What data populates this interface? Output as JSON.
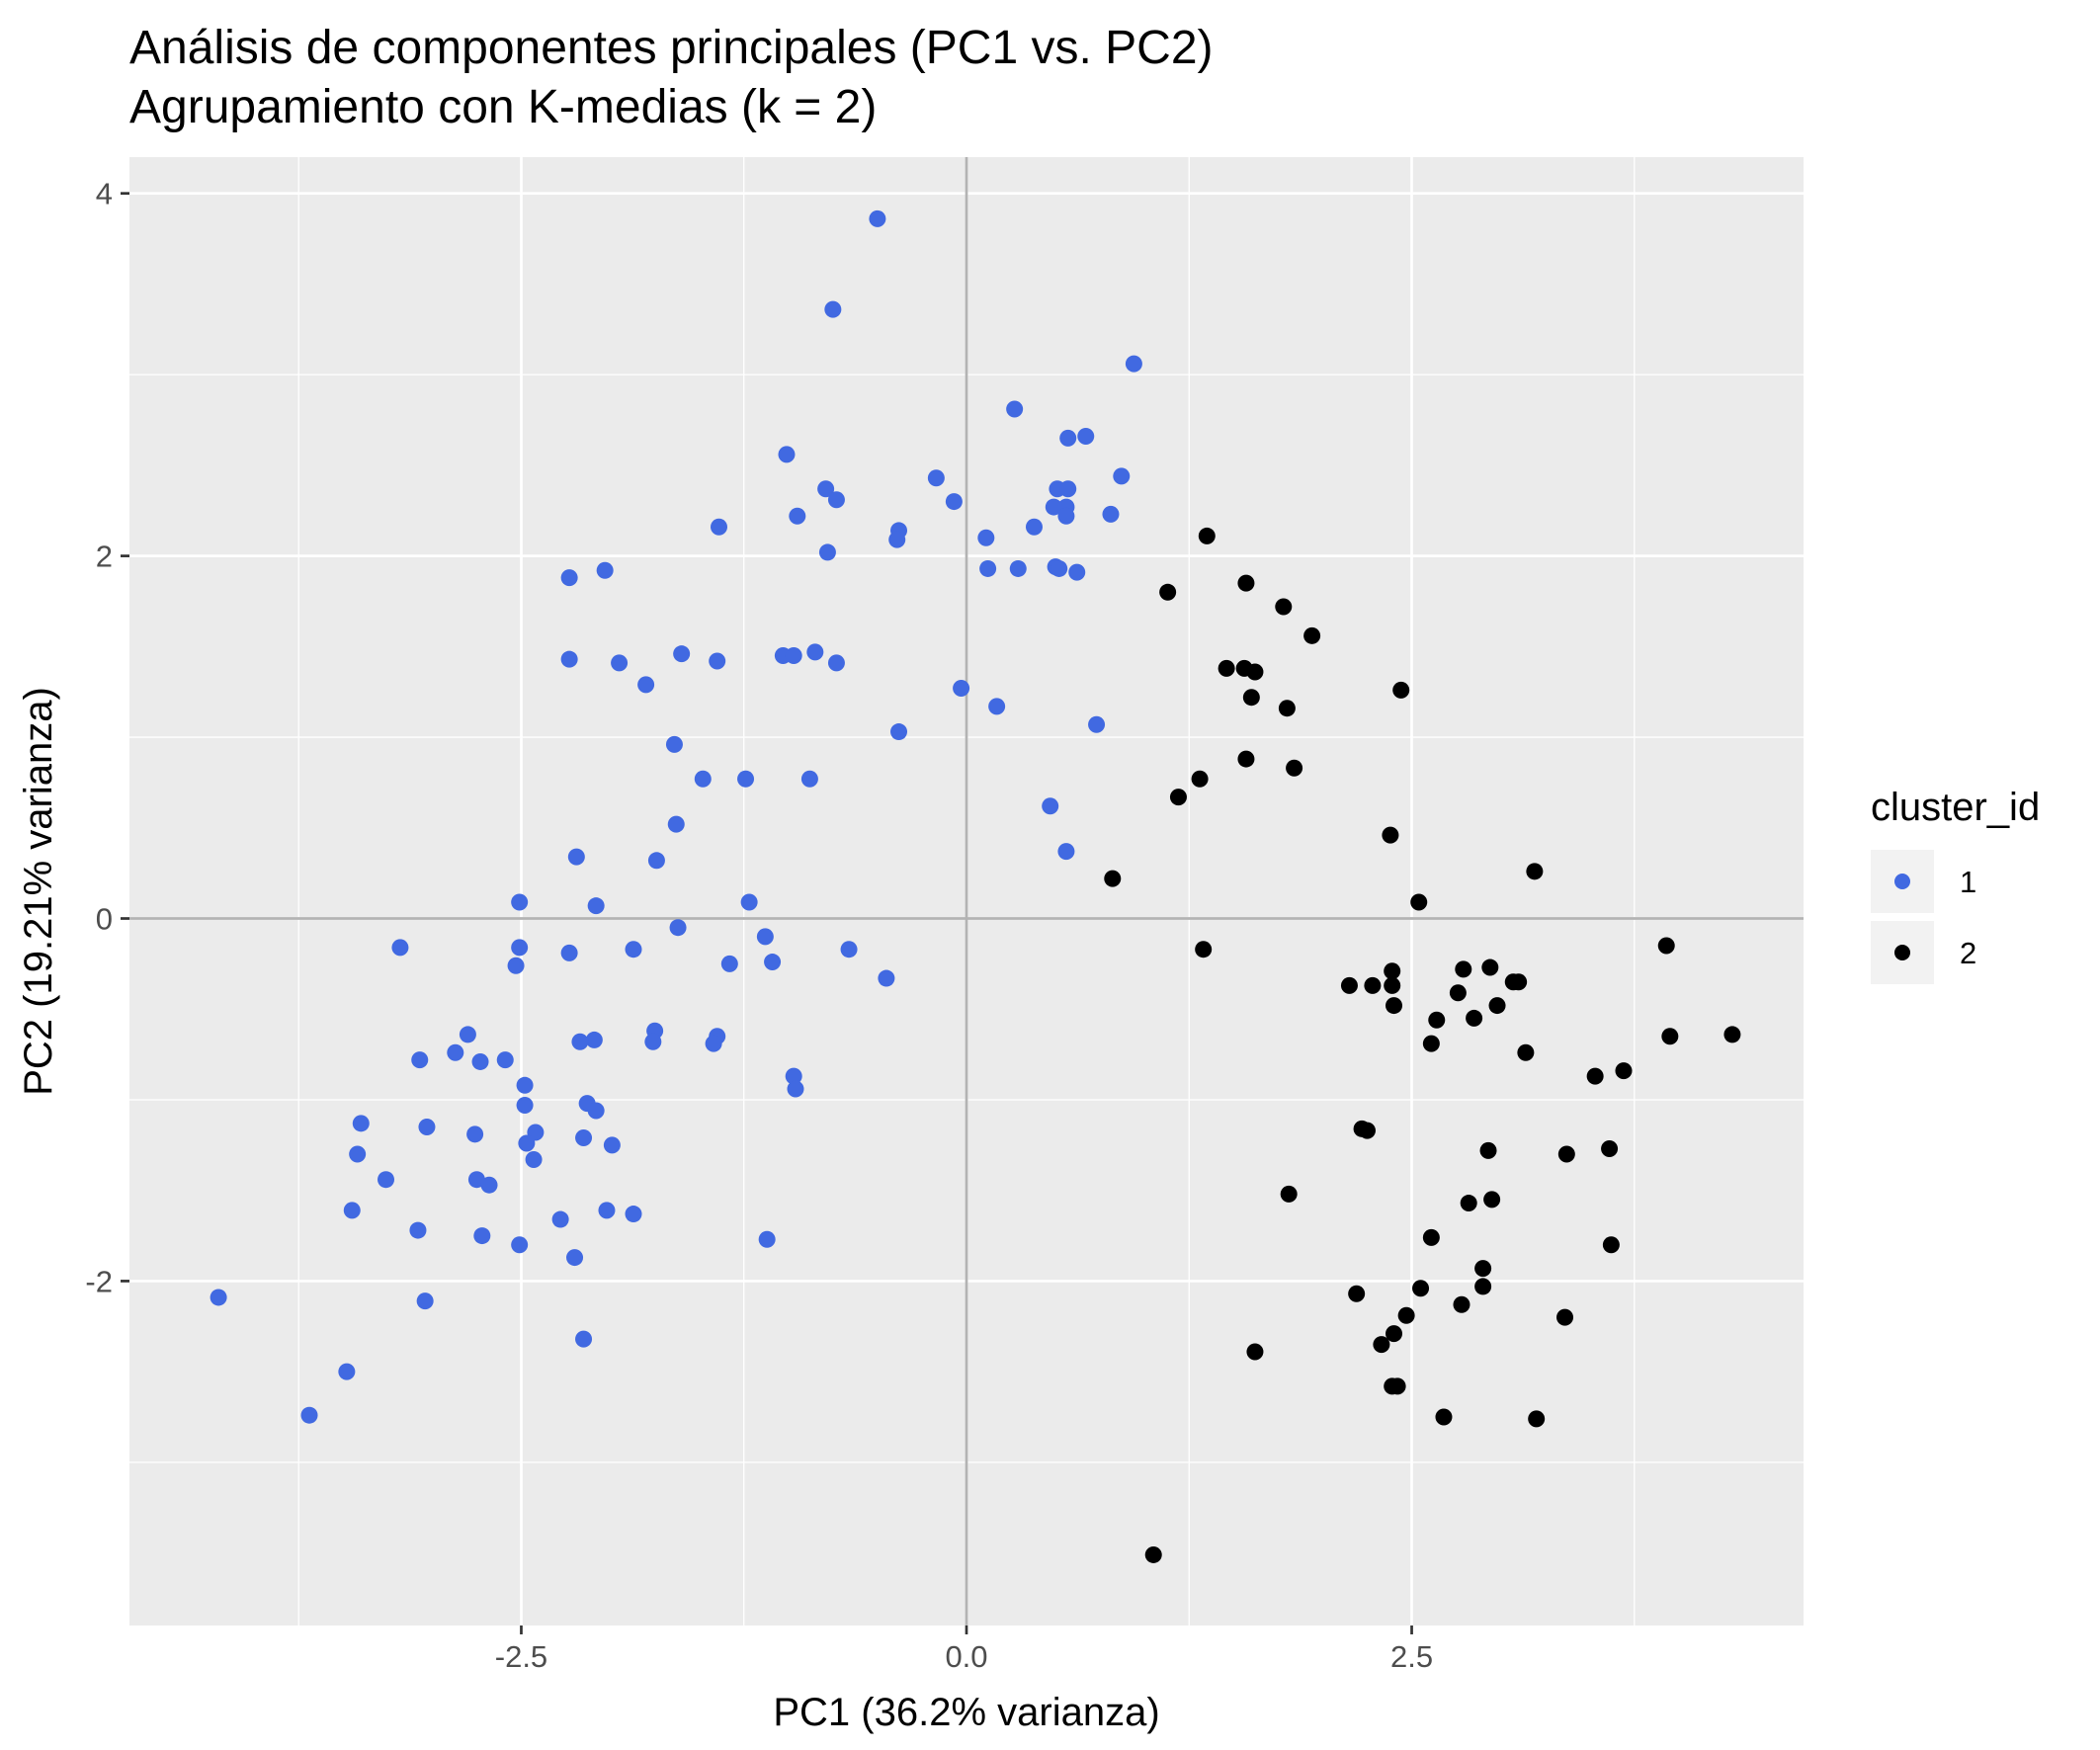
{
  "chart_data": {
    "type": "scatter",
    "title": "Análisis de componentes principales (PC1 vs. PC2)",
    "subtitle": "Agrupamiento con K-medias (k = 2)",
    "xlabel": "PC1 (36.2% varianza)",
    "ylabel": "PC2 (19.21% varianza)",
    "xlim": [
      -4.7,
      4.7
    ],
    "ylim": [
      -3.9,
      4.2
    ],
    "x_ticks": [
      -2.5,
      0.0,
      2.5
    ],
    "x_tick_labels": [
      "-2.5",
      "0.0",
      "2.5"
    ],
    "y_ticks": [
      -2,
      0,
      2,
      4
    ],
    "y_tick_labels": [
      "-2",
      "0",
      "2",
      "4"
    ],
    "reference_lines": {
      "x": 0,
      "y": 0
    },
    "grid": true,
    "legend": {
      "title": "cluster_id",
      "placement": "right",
      "entries": [
        {
          "label": "1",
          "color": "#4169E1"
        },
        {
          "label": "2",
          "color": "#000000"
        }
      ]
    },
    "series": [
      {
        "name": "1",
        "color": "#4169E1",
        "points": [
          [
            -0.5,
            3.86
          ],
          [
            -0.75,
            3.36
          ],
          [
            0.94,
            3.06
          ],
          [
            0.27,
            2.81
          ],
          [
            0.57,
            2.65
          ],
          [
            0.67,
            2.66
          ],
          [
            -1.01,
            2.56
          ],
          [
            -0.17,
            2.43
          ],
          [
            0.87,
            2.44
          ],
          [
            -0.79,
            2.37
          ],
          [
            0.51,
            2.37
          ],
          [
            0.57,
            2.37
          ],
          [
            -0.73,
            2.31
          ],
          [
            -0.07,
            2.3
          ],
          [
            0.49,
            2.27
          ],
          [
            0.56,
            2.27
          ],
          [
            -0.95,
            2.22
          ],
          [
            0.56,
            2.22
          ],
          [
            0.81,
            2.23
          ],
          [
            -1.39,
            2.16
          ],
          [
            -0.38,
            2.14
          ],
          [
            0.38,
            2.16
          ],
          [
            -0.39,
            2.09
          ],
          [
            0.11,
            2.1
          ],
          [
            -0.78,
            2.02
          ],
          [
            0.12,
            1.93
          ],
          [
            0.29,
            1.93
          ],
          [
            0.5,
            1.94
          ],
          [
            0.52,
            1.93
          ],
          [
            0.62,
            1.91
          ],
          [
            -2.23,
            1.88
          ],
          [
            -2.03,
            1.92
          ],
          [
            -0.85,
            1.47
          ],
          [
            -1.6,
            1.46
          ],
          [
            -1.03,
            1.45
          ],
          [
            -0.97,
            1.45
          ],
          [
            -2.23,
            1.43
          ],
          [
            -1.4,
            1.42
          ],
          [
            -1.95,
            1.41
          ],
          [
            -0.73,
            1.41
          ],
          [
            -1.8,
            1.29
          ],
          [
            -0.03,
            1.27
          ],
          [
            0.17,
            1.17
          ],
          [
            0.73,
            1.07
          ],
          [
            -0.38,
            1.03
          ],
          [
            -1.64,
            0.96
          ],
          [
            -1.48,
            0.77
          ],
          [
            -1.24,
            0.77
          ],
          [
            -0.88,
            0.77
          ],
          [
            0.47,
            0.62
          ],
          [
            -1.63,
            0.52
          ],
          [
            0.56,
            0.37
          ],
          [
            -2.19,
            0.34
          ],
          [
            -1.74,
            0.32
          ],
          [
            -2.51,
            0.09
          ],
          [
            -1.22,
            0.09
          ],
          [
            -2.08,
            0.07
          ],
          [
            -1.62,
            -0.05
          ],
          [
            -1.13,
            -0.1
          ],
          [
            -0.66,
            -0.17
          ],
          [
            -3.18,
            -0.16
          ],
          [
            -2.51,
            -0.16
          ],
          [
            -1.87,
            -0.17
          ],
          [
            -2.23,
            -0.19
          ],
          [
            -1.09,
            -0.24
          ],
          [
            -2.53,
            -0.26
          ],
          [
            -1.33,
            -0.25
          ],
          [
            -0.45,
            -0.33
          ],
          [
            -1.75,
            -0.62
          ],
          [
            -2.8,
            -0.64
          ],
          [
            -1.4,
            -0.65
          ],
          [
            -2.09,
            -0.67
          ],
          [
            -2.17,
            -0.68
          ],
          [
            -1.76,
            -0.68
          ],
          [
            -1.42,
            -0.69
          ],
          [
            -2.87,
            -0.74
          ],
          [
            -3.07,
            -0.78
          ],
          [
            -2.73,
            -0.79
          ],
          [
            -2.59,
            -0.78
          ],
          [
            -0.97,
            -0.87
          ],
          [
            -0.96,
            -0.94
          ],
          [
            -2.48,
            -0.92
          ],
          [
            -2.13,
            -1.02
          ],
          [
            -2.08,
            -1.06
          ],
          [
            -2.48,
            -1.03
          ],
          [
            -3.4,
            -1.13
          ],
          [
            -3.03,
            -1.15
          ],
          [
            -2.42,
            -1.18
          ],
          [
            -2.76,
            -1.19
          ],
          [
            -2.15,
            -1.21
          ],
          [
            -1.99,
            -1.25
          ],
          [
            -2.47,
            -1.24
          ],
          [
            -2.43,
            -1.33
          ],
          [
            -3.42,
            -1.3
          ],
          [
            -3.26,
            -1.44
          ],
          [
            -2.75,
            -1.44
          ],
          [
            -2.68,
            -1.47
          ],
          [
            -3.45,
            -1.61
          ],
          [
            -2.02,
            -1.61
          ],
          [
            -1.87,
            -1.63
          ],
          [
            -2.28,
            -1.66
          ],
          [
            -3.08,
            -1.72
          ],
          [
            -2.72,
            -1.75
          ],
          [
            -1.12,
            -1.77
          ],
          [
            -2.51,
            -1.8
          ],
          [
            -2.2,
            -1.87
          ],
          [
            -4.2,
            -2.09
          ],
          [
            -3.04,
            -2.11
          ],
          [
            -2.15,
            -2.32
          ],
          [
            -3.48,
            -2.5
          ],
          [
            -3.69,
            -2.74
          ]
        ]
      },
      {
        "name": "2",
        "color": "#000000",
        "points": [
          [
            1.35,
            2.11
          ],
          [
            1.13,
            1.8
          ],
          [
            1.57,
            1.85
          ],
          [
            1.78,
            1.72
          ],
          [
            1.94,
            1.56
          ],
          [
            1.46,
            1.38
          ],
          [
            1.56,
            1.38
          ],
          [
            1.62,
            1.36
          ],
          [
            2.44,
            1.26
          ],
          [
            1.6,
            1.22
          ],
          [
            1.8,
            1.16
          ],
          [
            1.57,
            0.88
          ],
          [
            1.84,
            0.83
          ],
          [
            1.31,
            0.77
          ],
          [
            1.19,
            0.67
          ],
          [
            2.38,
            0.46
          ],
          [
            3.19,
            0.26
          ],
          [
            0.82,
            0.22
          ],
          [
            2.54,
            0.09
          ],
          [
            3.93,
            -0.15
          ],
          [
            1.33,
            -0.17
          ],
          [
            2.79,
            -0.28
          ],
          [
            2.94,
            -0.27
          ],
          [
            2.39,
            -0.29
          ],
          [
            3.07,
            -0.35
          ],
          [
            3.1,
            -0.35
          ],
          [
            2.15,
            -0.37
          ],
          [
            2.28,
            -0.37
          ],
          [
            2.39,
            -0.37
          ],
          [
            2.76,
            -0.41
          ],
          [
            2.98,
            -0.48
          ],
          [
            2.4,
            -0.48
          ],
          [
            2.64,
            -0.56
          ],
          [
            2.85,
            -0.55
          ],
          [
            3.95,
            -0.65
          ],
          [
            4.3,
            -0.64
          ],
          [
            2.61,
            -0.69
          ],
          [
            3.14,
            -0.74
          ],
          [
            3.69,
            -0.84
          ],
          [
            3.53,
            -0.87
          ],
          [
            2.22,
            -1.16
          ],
          [
            2.25,
            -1.17
          ],
          [
            2.93,
            -1.28
          ],
          [
            3.61,
            -1.27
          ],
          [
            3.37,
            -1.3
          ],
          [
            1.81,
            -1.52
          ],
          [
            2.95,
            -1.55
          ],
          [
            2.82,
            -1.57
          ],
          [
            2.61,
            -1.76
          ],
          [
            3.62,
            -1.8
          ],
          [
            2.9,
            -1.93
          ],
          [
            2.9,
            -2.03
          ],
          [
            2.55,
            -2.04
          ],
          [
            2.19,
            -2.07
          ],
          [
            2.78,
            -2.13
          ],
          [
            2.47,
            -2.19
          ],
          [
            3.36,
            -2.2
          ],
          [
            2.4,
            -2.29
          ],
          [
            2.33,
            -2.35
          ],
          [
            1.62,
            -2.39
          ],
          [
            2.39,
            -2.58
          ],
          [
            2.42,
            -2.58
          ],
          [
            2.68,
            -2.75
          ],
          [
            3.2,
            -2.76
          ],
          [
            1.05,
            -3.51
          ]
        ]
      }
    ]
  }
}
